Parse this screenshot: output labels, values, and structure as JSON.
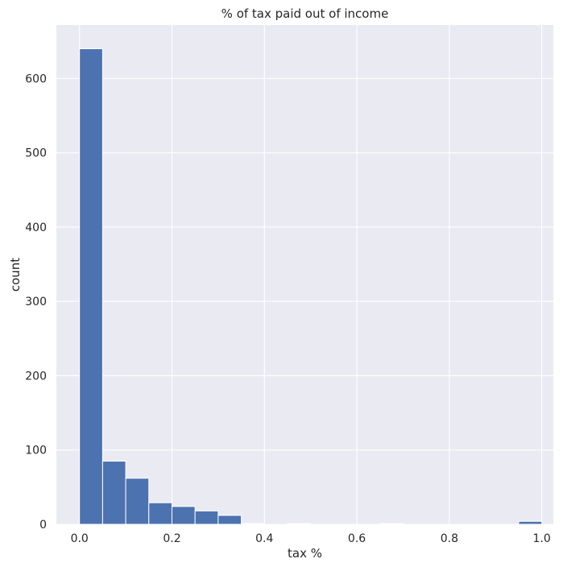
{
  "chart_data": {
    "type": "bar",
    "title": "% of tax paid out of income",
    "xlabel": "tax %",
    "ylabel": "count",
    "xlim": [
      -0.05,
      1.025
    ],
    "ylim": [
      0,
      672
    ],
    "xticks": [
      0.0,
      0.2,
      0.4,
      0.6,
      0.8,
      1.0
    ],
    "xtick_labels": [
      "0.0",
      "0.2",
      "0.4",
      "0.6",
      "0.8",
      "1.0"
    ],
    "yticks": [
      0,
      100,
      200,
      300,
      400,
      500,
      600
    ],
    "ytick_labels": [
      "0",
      "100",
      "200",
      "300",
      "400",
      "500",
      "600"
    ],
    "bin_edges": [
      0.0,
      0.05,
      0.1,
      0.15,
      0.2,
      0.25,
      0.3,
      0.35,
      0.4,
      0.45,
      0.5,
      0.55,
      0.6,
      0.65,
      0.7,
      0.75,
      0.8,
      0.85,
      0.9,
      0.95,
      1.0
    ],
    "values": [
      640,
      85,
      62,
      29,
      24,
      18,
      12,
      1,
      0,
      1,
      0,
      0,
      0,
      1,
      0,
      0,
      0,
      0,
      0,
      4
    ],
    "grid": true,
    "colors": {
      "bar": "#4c72b0",
      "background": "#eaeaf2",
      "grid": "#ffffff",
      "text": "#262626"
    }
  }
}
